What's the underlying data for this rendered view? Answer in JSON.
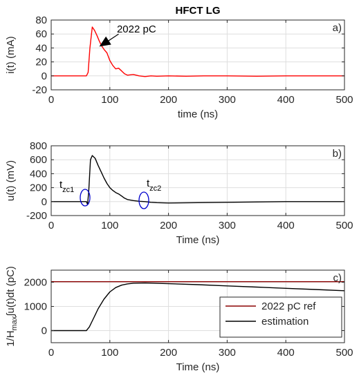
{
  "figure_title": "HFCT LG",
  "chart_data": [
    {
      "id": "a",
      "type": "line",
      "panel_label": "a)",
      "xlabel": "time (ns)",
      "ylabel": "i(t) (mA)",
      "xlim": [
        0,
        500
      ],
      "ylim": [
        -20,
        80
      ],
      "xticks": [
        0,
        100,
        200,
        300,
        400,
        500
      ],
      "yticks": [
        -20,
        0,
        20,
        40,
        60,
        80
      ],
      "grid": true,
      "annotation": "2022 pC",
      "series": [
        {
          "color": "#ff0000",
          "x": [
            0,
            60,
            63,
            66,
            70,
            74,
            78,
            82,
            86,
            90,
            95,
            100,
            105,
            110,
            115,
            120,
            125,
            130,
            140,
            150,
            160,
            170,
            180,
            200,
            230,
            260,
            300,
            350,
            400,
            450,
            500
          ],
          "y": [
            0,
            0,
            5,
            40,
            70,
            65,
            58,
            50,
            43,
            38,
            33,
            22,
            15,
            10,
            11,
            7,
            3,
            1,
            2,
            0,
            -1,
            0,
            -0.5,
            0,
            -0.5,
            0,
            0,
            -0.5,
            0,
            0,
            0
          ]
        }
      ]
    },
    {
      "id": "b",
      "type": "line",
      "panel_label": "b)",
      "xlabel": "Time (ns)",
      "ylabel": "u(t) (mV)",
      "xlim": [
        0,
        500
      ],
      "ylim": [
        -200,
        800
      ],
      "xticks": [
        0,
        100,
        200,
        300,
        400,
        500
      ],
      "yticks": [
        -200,
        0,
        200,
        400,
        600,
        800
      ],
      "grid": true,
      "markers": [
        {
          "label_main": "t",
          "label_sub": "zc1",
          "x": 60,
          "y": 40
        },
        {
          "label_main": "t",
          "label_sub": "zc2",
          "x": 160,
          "y": 0
        }
      ],
      "series": [
        {
          "color": "#000000",
          "x": [
            0,
            60,
            62,
            64,
            67,
            70,
            75,
            80,
            85,
            90,
            95,
            100,
            105,
            110,
            115,
            120,
            125,
            130,
            140,
            150,
            160,
            170,
            180,
            200,
            250,
            300,
            350,
            400,
            450,
            500
          ],
          "y": [
            0,
            0,
            -40,
            150,
            600,
            660,
            620,
            520,
            430,
            340,
            260,
            200,
            160,
            130,
            110,
            80,
            50,
            30,
            15,
            5,
            0,
            -10,
            -15,
            -20,
            -15,
            -10,
            -5,
            0,
            0,
            0
          ]
        }
      ]
    },
    {
      "id": "c",
      "type": "line",
      "panel_label": "c)",
      "xlabel": "Time (ns)",
      "ylabel_main": "1/H",
      "ylabel_sub": "max",
      "ylabel_rest": "∫u(t)dt (pC)",
      "xlim": [
        0,
        500
      ],
      "ylim": [
        -500,
        2500
      ],
      "xticks": [
        0,
        100,
        200,
        300,
        400,
        500
      ],
      "yticks": [
        0,
        1000,
        2000
      ],
      "grid": true,
      "legend_position": "bottom-right",
      "series": [
        {
          "name": "2022 pC ref",
          "color": "#8b0000",
          "x": [
            0,
            500
          ],
          "y": [
            2022,
            2022
          ]
        },
        {
          "name": "estimation",
          "color": "#000000",
          "x": [
            0,
            60,
            65,
            70,
            75,
            80,
            90,
            100,
            110,
            120,
            130,
            140,
            160,
            200,
            250,
            300,
            350,
            400,
            450,
            500
          ],
          "y": [
            0,
            0,
            150,
            400,
            650,
            900,
            1300,
            1600,
            1780,
            1880,
            1930,
            1960,
            1970,
            1940,
            1900,
            1850,
            1800,
            1750,
            1700,
            1650
          ]
        }
      ]
    }
  ]
}
